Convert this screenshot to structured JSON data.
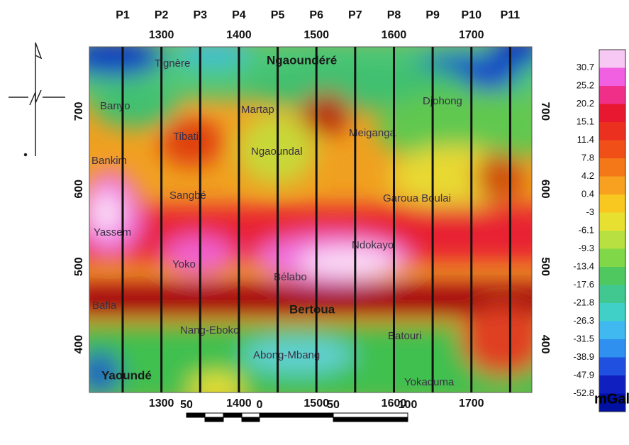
{
  "map": {
    "profiles": [
      "P1",
      "P2",
      "P3",
      "P4",
      "P5",
      "P6",
      "P7",
      "P8",
      "P9",
      "P10",
      "P11"
    ],
    "profile_x": [
      1250,
      1300,
      1350,
      1400,
      1450,
      1500,
      1550,
      1600,
      1650,
      1700,
      1750
    ],
    "xlim": [
      1207,
      1778
    ],
    "ylim": [
      338,
      783
    ],
    "xticks": [
      1300,
      1400,
      1500,
      1600,
      1700
    ],
    "yticks": [
      400,
      500,
      600,
      700
    ],
    "places": [
      "Tignère",
      "Ngaoundéré",
      "Banyo",
      "Martap",
      "Djohong",
      "Tibati",
      "Meiganga",
      "Ngaoundal",
      "Bankim",
      "Sangbé",
      "Garoua Boulai",
      "Yassem",
      "Ndokayo",
      "Yoko",
      "Bélabo",
      "Bafia",
      "Bertoua",
      "Nang-Eboko",
      "Batouri",
      "Abong-Mbang",
      "Yaoundé",
      "Yokaduma"
    ],
    "colorbar": {
      "labels": [
        30.7,
        25.2,
        20.2,
        15.1,
        11.4,
        7.8,
        4.2,
        0.4,
        -3.0,
        -6.1,
        -9.3,
        -13.4,
        -17.6,
        -21.8,
        -26.3,
        -31.5,
        -38.9,
        -47.9,
        -52.8
      ],
      "colors": [
        "#f8c8f4",
        "#f060e0",
        "#f03088",
        "#e81830",
        "#ec3020",
        "#f05018",
        "#f47818",
        "#f8a020",
        "#f8c820",
        "#e8e030",
        "#b8e040",
        "#80d848",
        "#50c860",
        "#40c890",
        "#40d0c8",
        "#40b8f0",
        "#3090f0",
        "#2050e0",
        "#1020c0",
        "#0010a0"
      ],
      "unit": "mGal"
    },
    "scale_bar": [
      50,
      0,
      50,
      100
    ]
  }
}
